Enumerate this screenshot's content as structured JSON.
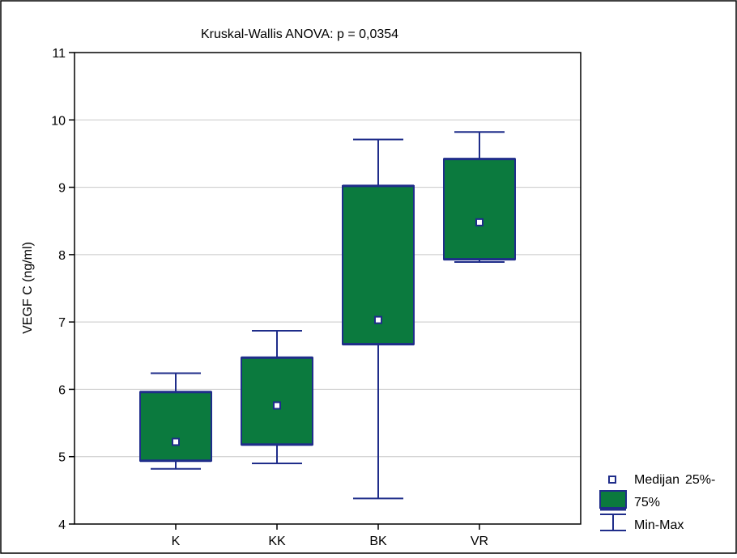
{
  "chart_data": {
    "type": "box",
    "title": "Kruskal-Wallis ANOVA: p = 0,0354",
    "ylabel": "VEGF C (ng/ml)",
    "xlabel": "",
    "ylim": [
      4,
      11
    ],
    "yticks": [
      "4",
      "5",
      "6",
      "7",
      "8",
      "9",
      "10",
      "11"
    ],
    "grid": true,
    "legend_position": "bottom-right",
    "categories": [
      "K",
      "KK",
      "BK",
      "VR"
    ],
    "boxes": [
      {
        "category": "K",
        "min": 4.82,
        "q1": 4.94,
        "median": 5.22,
        "q3": 5.96,
        "max": 6.24
      },
      {
        "category": "KK",
        "min": 4.9,
        "q1": 5.18,
        "median": 5.76,
        "q3": 6.47,
        "max": 6.87
      },
      {
        "category": "BK",
        "min": 4.38,
        "q1": 6.67,
        "median": 7.03,
        "q3": 9.02,
        "max": 9.71
      },
      {
        "category": "VR",
        "min": 7.89,
        "q1": 7.93,
        "median": 8.48,
        "q3": 9.42,
        "max": 9.82
      }
    ],
    "legend": {
      "median_label": "Medijan",
      "box_label_line1": "25%-",
      "box_label_line2": "75%",
      "whisker_label": "Min-Max"
    },
    "colors": {
      "box_fill": "#0b7a3e",
      "box_stroke": "#1f2d8a",
      "whisker": "#1f2d8a",
      "median_marker_fill": "#ffffff",
      "grid": "#c8c8c8",
      "frame": "#000000"
    }
  }
}
